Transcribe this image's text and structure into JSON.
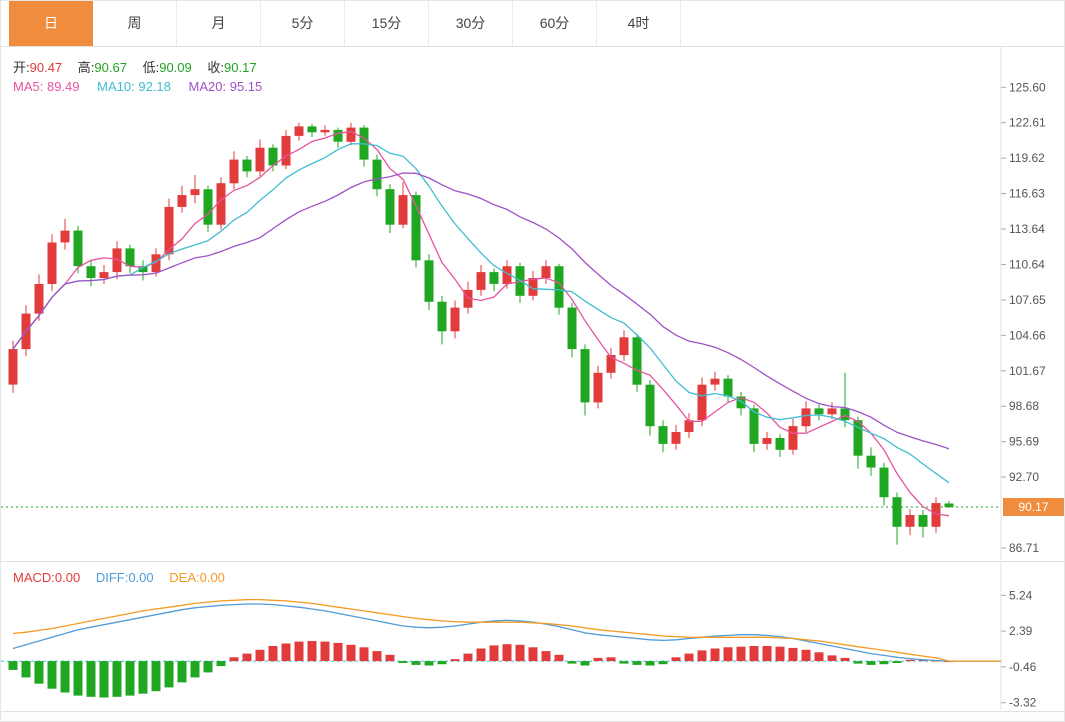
{
  "tabbar": {
    "active": "日",
    "tabs": [
      {
        "name": "day",
        "label": "日"
      },
      {
        "name": "week",
        "label": "周"
      },
      {
        "name": "month",
        "label": "月"
      },
      {
        "name": "5min",
        "label": "5分"
      },
      {
        "name": "15min",
        "label": "15分"
      },
      {
        "name": "30min",
        "label": "30分"
      },
      {
        "name": "60min",
        "label": "60分"
      },
      {
        "name": "4hour",
        "label": "4时"
      }
    ]
  },
  "legend": {
    "ohlc": {
      "open_label": "开:",
      "open": "90.47",
      "high_label": "高:",
      "high": "90.67",
      "low_label": "低:",
      "low": "90.09",
      "close_label": "收:",
      "close": "90.17"
    },
    "ma": {
      "ma5_label": "MA5:",
      "ma5": "89.49",
      "ma10_label": "MA10:",
      "ma10": "92.18",
      "ma20_label": "MA20:",
      "ma20": "95.15"
    }
  },
  "macd_legend": {
    "macd_label": "MACD:",
    "macd": "0.00",
    "diff_label": "DIFF:",
    "diff": "0.00",
    "dea_label": "DEA:",
    "dea": "0.00"
  },
  "price_tag": "90.17",
  "main_axis": {
    "labels": [
      "125.60",
      "122.61",
      "119.62",
      "116.63",
      "113.64",
      "110.64",
      "107.65",
      "104.66",
      "101.67",
      "98.68",
      "95.69",
      "92.70",
      "86.71"
    ]
  },
  "macd_axis": {
    "labels": [
      "5.24",
      "2.39",
      "-0.46",
      "-3.32"
    ]
  },
  "colors": {
    "up": "#e23b3b",
    "down": "#1fa722",
    "ma5": "#e8539f",
    "ma10": "#3fbdd1",
    "ma20": "#9f52c5",
    "diff": "#4f9cd9",
    "dea": "#f59a23",
    "accent": "#f08c3e",
    "price_line": "#1aa31a",
    "zero_line": "#3bc3d6"
  },
  "chart_data": {
    "type": "candlestick",
    "panels": [
      {
        "name": "price",
        "ylim": [
          85.7,
          129.0
        ],
        "yticks": [
          125.6,
          122.61,
          119.62,
          116.63,
          113.64,
          110.64,
          107.65,
          104.66,
          101.67,
          98.68,
          95.69,
          92.7,
          86.71
        ],
        "current_price_line": 90.17,
        "overlays": [
          {
            "name": "MA5",
            "period": 5,
            "value": 89.49
          },
          {
            "name": "MA10",
            "period": 10,
            "value": 92.18
          },
          {
            "name": "MA20",
            "period": 20,
            "value": 95.15
          }
        ],
        "candles": {
          "open": [
            100.5,
            103.5,
            106.5,
            109.0,
            112.5,
            113.5,
            110.5,
            109.5,
            110.0,
            112.0,
            110.5,
            110.0,
            111.5,
            115.5,
            116.5,
            117.0,
            114.0,
            117.5,
            119.5,
            118.5,
            120.5,
            119.0,
            121.5,
            122.3,
            121.8,
            122.0,
            121.0,
            122.2,
            119.5,
            117.0,
            114.0,
            116.5,
            111.0,
            107.5,
            105.0,
            107.0,
            108.5,
            110.0,
            109.0,
            110.5,
            108.0,
            109.5,
            110.5,
            107.0,
            103.5,
            99.0,
            101.5,
            103.0,
            104.5,
            100.5,
            97.0,
            95.5,
            96.5,
            97.5,
            100.5,
            101.0,
            99.5,
            98.5,
            95.5,
            96.0,
            95.0,
            97.0,
            98.5,
            98.0,
            98.5,
            97.5,
            94.5,
            93.5,
            91.0,
            88.5,
            89.5,
            88.5,
            90.47
          ],
          "high": [
            104.2,
            107.2,
            109.8,
            113.2,
            114.5,
            113.9,
            111.0,
            110.6,
            112.6,
            112.3,
            111.0,
            112.0,
            116.2,
            117.3,
            118.2,
            117.3,
            118.0,
            120.2,
            119.8,
            121.2,
            120.8,
            122.0,
            122.6,
            122.5,
            122.4,
            122.2,
            122.6,
            122.4,
            119.9,
            117.4,
            117.6,
            116.8,
            111.5,
            108.0,
            107.6,
            109.2,
            110.6,
            110.3,
            111.0,
            110.8,
            110.1,
            111.0,
            110.7,
            107.4,
            103.9,
            102.1,
            103.6,
            105.1,
            104.8,
            100.9,
            97.5,
            97.1,
            98.1,
            101.1,
            101.6,
            101.3,
            99.9,
            98.8,
            96.5,
            96.3,
            97.6,
            99.1,
            98.8,
            99.0,
            101.5,
            97.8,
            95.2,
            93.9,
            91.4,
            90.0,
            89.9,
            91.0,
            90.67
          ],
          "low": [
            99.8,
            102.9,
            105.9,
            108.4,
            111.9,
            109.9,
            108.8,
            109.0,
            109.4,
            109.9,
            109.3,
            109.6,
            111.0,
            115.0,
            115.8,
            113.4,
            113.6,
            117.0,
            118.0,
            118.1,
            118.5,
            118.7,
            121.1,
            121.4,
            121.5,
            120.5,
            120.7,
            118.9,
            116.4,
            113.3,
            113.7,
            110.4,
            106.8,
            103.9,
            104.4,
            106.5,
            108.0,
            108.4,
            108.6,
            107.4,
            107.6,
            109.0,
            106.4,
            102.8,
            97.9,
            98.5,
            101.0,
            102.5,
            99.9,
            96.2,
            94.8,
            95.0,
            96.0,
            97.0,
            100.0,
            99.0,
            97.9,
            94.8,
            95.0,
            94.4,
            94.6,
            96.5,
            97.5,
            97.6,
            96.9,
            93.4,
            92.8,
            90.3,
            87.0,
            87.8,
            87.6,
            88.0,
            90.09
          ],
          "close": [
            103.5,
            106.5,
            109.0,
            112.5,
            113.5,
            110.5,
            109.5,
            110.0,
            112.0,
            110.5,
            110.0,
            111.5,
            115.5,
            116.5,
            117.0,
            114.0,
            117.5,
            119.5,
            118.5,
            120.5,
            119.0,
            121.5,
            122.3,
            121.8,
            122.0,
            121.0,
            122.2,
            119.5,
            117.0,
            114.0,
            116.5,
            111.0,
            107.5,
            105.0,
            107.0,
            108.5,
            110.0,
            109.0,
            110.5,
            108.0,
            109.5,
            110.5,
            107.0,
            103.5,
            99.0,
            101.5,
            103.0,
            104.5,
            100.5,
            97.0,
            95.5,
            96.5,
            97.5,
            100.5,
            101.0,
            99.5,
            98.5,
            95.5,
            96.0,
            95.0,
            97.0,
            98.5,
            98.0,
            98.5,
            97.5,
            94.5,
            93.5,
            91.0,
            88.5,
            89.5,
            88.5,
            90.5,
            90.17
          ]
        }
      },
      {
        "name": "macd",
        "ylim": [
          -3.9,
          7.9
        ],
        "yticks": [
          5.24,
          2.39,
          -0.46,
          -3.32
        ],
        "current_value_line": 0,
        "histogram": [
          -0.7,
          -1.3,
          -1.8,
          -2.2,
          -2.5,
          -2.75,
          -2.85,
          -2.9,
          -2.85,
          -2.75,
          -2.6,
          -2.4,
          -2.1,
          -1.7,
          -1.3,
          -0.9,
          -0.4,
          0.3,
          0.6,
          0.9,
          1.2,
          1.4,
          1.55,
          1.6,
          1.55,
          1.45,
          1.3,
          1.1,
          0.8,
          0.5,
          -0.15,
          -0.3,
          -0.35,
          -0.25,
          0.15,
          0.6,
          1.0,
          1.25,
          1.35,
          1.3,
          1.1,
          0.8,
          0.5,
          -0.2,
          -0.35,
          0.25,
          0.3,
          -0.2,
          -0.3,
          -0.35,
          -0.25,
          0.3,
          0.6,
          0.85,
          1.0,
          1.1,
          1.15,
          1.2,
          1.2,
          1.15,
          1.05,
          0.9,
          0.7,
          0.45,
          0.25,
          -0.2,
          -0.3,
          -0.25,
          -0.15,
          0.1,
          0.08,
          0.05,
          0.0
        ],
        "lines": [
          {
            "name": "DIFF",
            "values": [
              1.0,
              1.3,
              1.6,
              1.9,
              2.2,
              2.5,
              2.7,
              2.9,
              3.1,
              3.3,
              3.5,
              3.7,
              3.9,
              4.1,
              4.25,
              4.35,
              4.45,
              4.5,
              4.55,
              4.55,
              4.5,
              4.4,
              4.3,
              4.15,
              4.0,
              3.8,
              3.6,
              3.4,
              3.2,
              3.0,
              2.8,
              2.7,
              2.65,
              2.7,
              2.8,
              2.95,
              3.1,
              3.2,
              3.25,
              3.2,
              3.1,
              2.95,
              2.75,
              2.5,
              2.25,
              2.1,
              2.0,
              1.9,
              1.8,
              1.7,
              1.65,
              1.7,
              1.8,
              1.9,
              2.0,
              2.05,
              2.1,
              2.1,
              2.05,
              1.95,
              1.8,
              1.6,
              1.4,
              1.2,
              1.0,
              0.8,
              0.6,
              0.45,
              0.3,
              0.2,
              0.1,
              0.05,
              0.0
            ]
          },
          {
            "name": "DEA",
            "values": [
              2.2,
              2.3,
              2.45,
              2.6,
              2.8,
              3.0,
              3.2,
              3.4,
              3.6,
              3.8,
              4.0,
              4.15,
              4.3,
              4.45,
              4.6,
              4.7,
              4.8,
              4.85,
              4.9,
              4.9,
              4.85,
              4.8,
              4.7,
              4.6,
              4.45,
              4.3,
              4.15,
              4.0,
              3.85,
              3.7,
              3.55,
              3.4,
              3.3,
              3.2,
              3.15,
              3.1,
              3.1,
              3.1,
              3.1,
              3.1,
              3.05,
              3.0,
              2.9,
              2.8,
              2.65,
              2.5,
              2.4,
              2.3,
              2.2,
              2.1,
              2.0,
              1.95,
              1.9,
              1.9,
              1.9,
              1.9,
              1.9,
              1.9,
              1.9,
              1.85,
              1.8,
              1.7,
              1.6,
              1.45,
              1.3,
              1.15,
              1.0,
              0.85,
              0.7,
              0.55,
              0.4,
              0.25,
              0.0
            ]
          }
        ]
      }
    ]
  }
}
